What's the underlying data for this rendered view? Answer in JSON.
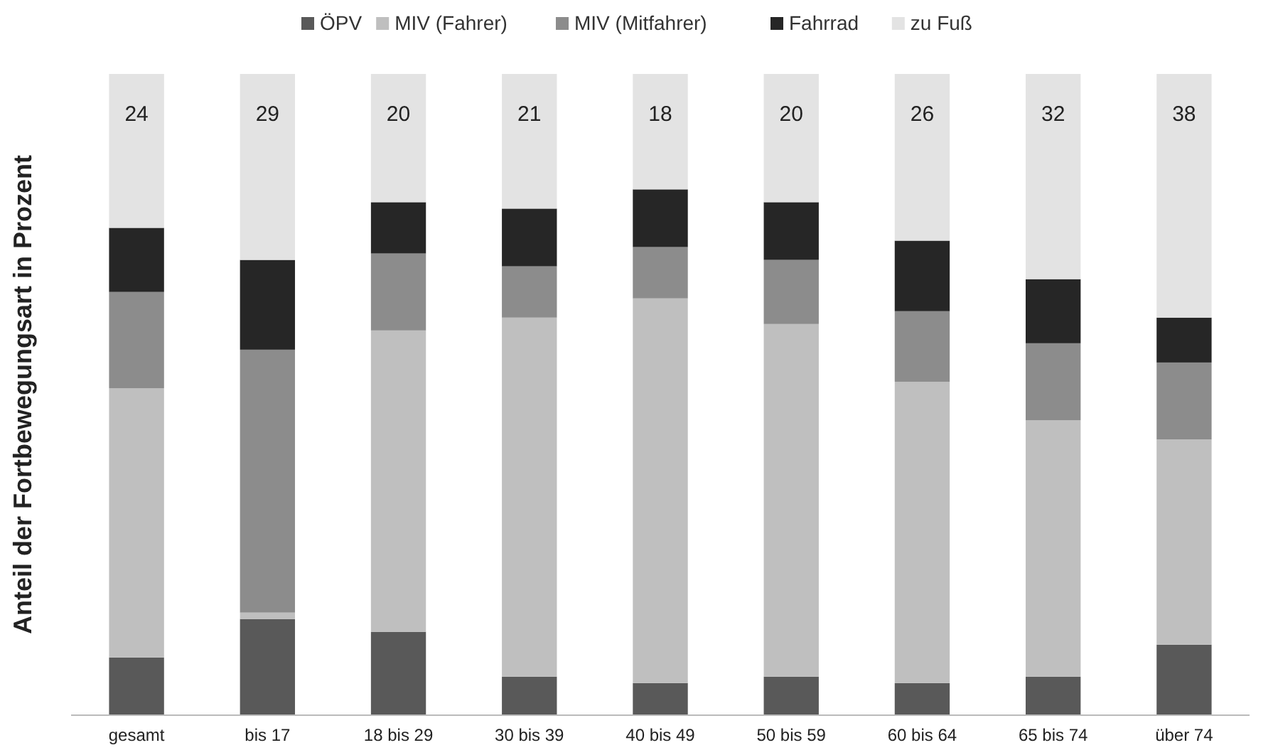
{
  "chart_data": {
    "type": "bar",
    "stacked": true,
    "ylabel": "Anteil der Fortbewegungsart in Prozent",
    "ylim": [
      0,
      100
    ],
    "tick_labels": "x",
    "legend": "top",
    "grid": false,
    "categories": [
      "gesamt",
      "bis 17",
      "18 bis 29",
      "30 bis 39",
      "40 bis 49",
      "50 bis 59",
      "60 bis 64",
      "65 bis 74",
      "über 74"
    ],
    "series": [
      {
        "name": "ÖPV",
        "color": "#595959",
        "values": [
          9,
          15,
          13,
          6,
          5,
          6,
          5,
          6,
          11
        ]
      },
      {
        "name": "MIV (Fahrer)",
        "color": "#bfbfbf",
        "values": [
          42,
          1,
          47,
          56,
          60,
          55,
          47,
          40,
          32
        ]
      },
      {
        "name": "MIV (Mitfahrer)",
        "color": "#8c8c8c",
        "values": [
          15,
          41,
          12,
          8,
          8,
          10,
          11,
          12,
          12
        ]
      },
      {
        "name": "Fahrrad",
        "color": "#262626",
        "values": [
          10,
          14,
          8,
          9,
          9,
          9,
          11,
          10,
          7
        ]
      },
      {
        "name": "zu Fuß",
        "color": "#e3e3e3",
        "values": [
          24,
          29,
          20,
          21,
          18,
          20,
          26,
          32,
          38
        ],
        "value_labels": [
          "24",
          "29",
          "20",
          "21",
          "18",
          "20",
          "26",
          "32",
          "38"
        ]
      }
    ]
  }
}
